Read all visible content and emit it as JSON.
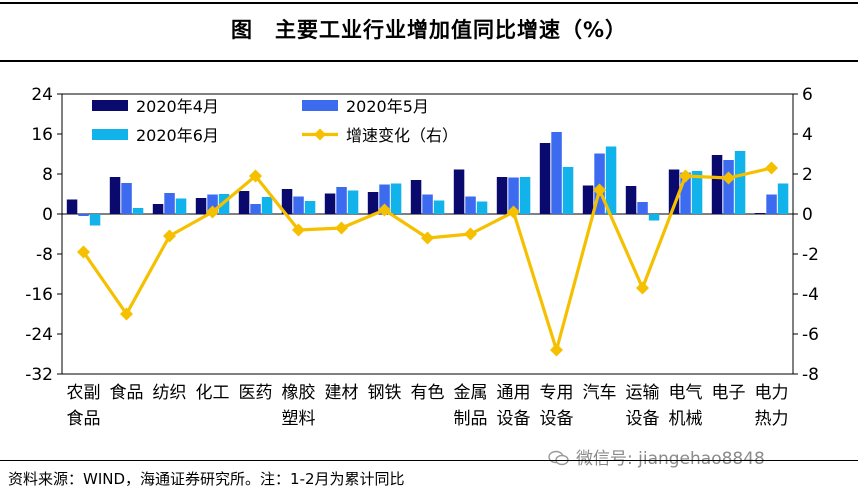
{
  "title": "图　主要工业行业增加值同比增速（%）",
  "source": "资料来源：WIND，海通证券研究所。注：1-2月为累计同比",
  "watermark": "微信号: jiangehao8848",
  "colors": {
    "apr": "#0a0a6e",
    "may": "#3d6bf0",
    "jun": "#12b2ea",
    "line": "#f5c000"
  },
  "chart_data": {
    "type": "bar",
    "categories": [
      [
        "农副",
        "食品"
      ],
      [
        "食品"
      ],
      [
        "纺织"
      ],
      [
        "化工"
      ],
      [
        "医药"
      ],
      [
        "橡胶",
        "塑料"
      ],
      [
        "建材"
      ],
      [
        "钢铁"
      ],
      [
        "有色"
      ],
      [
        "金属",
        "制品"
      ],
      [
        "通用",
        "设备"
      ],
      [
        "专用",
        "设备"
      ],
      [
        "汽车"
      ],
      [
        "运输",
        "设备"
      ],
      [
        "电气",
        "机械"
      ],
      [
        "电子"
      ],
      [
        "电力",
        "热力"
      ]
    ],
    "series": [
      {
        "name": "2020年4月",
        "axis": "left",
        "type": "bar",
        "values": [
          2.9,
          7.4,
          2.0,
          3.2,
          4.6,
          5.0,
          4.1,
          4.4,
          6.8,
          8.9,
          7.4,
          14.2,
          5.7,
          5.6,
          8.9,
          11.8,
          0.2
        ]
      },
      {
        "name": "2020年5月",
        "axis": "left",
        "type": "bar",
        "values": [
          -0.4,
          6.2,
          4.2,
          3.9,
          2.0,
          3.5,
          5.4,
          5.9,
          3.9,
          3.5,
          7.3,
          16.4,
          12.1,
          2.4,
          8.3,
          10.8,
          3.9
        ]
      },
      {
        "name": "2020年6月",
        "axis": "left",
        "type": "bar",
        "values": [
          -2.3,
          1.2,
          3.1,
          4.0,
          3.4,
          2.6,
          4.7,
          6.1,
          2.7,
          2.5,
          7.4,
          9.4,
          13.5,
          -1.3,
          8.6,
          12.6,
          6.1
        ]
      },
      {
        "name": "增速变化（右）",
        "axis": "right",
        "type": "line",
        "values": [
          -1.9,
          -5.0,
          -1.1,
          0.1,
          1.9,
          -0.8,
          -0.7,
          0.2,
          -1.2,
          -1.0,
          0.1,
          -6.8,
          1.2,
          -3.7,
          1.9,
          1.8,
          2.3
        ]
      }
    ],
    "y_left": {
      "min": -32,
      "max": 24,
      "ticks": [
        "24",
        "16",
        "8",
        "0",
        "-8",
        "-16",
        "-24",
        "-32"
      ]
    },
    "y_right": {
      "min": -8,
      "max": 6,
      "ticks": [
        "6",
        "4",
        "2",
        "0",
        "-2",
        "-4",
        "-6",
        "-8"
      ]
    },
    "grid": false,
    "legend": "top-left, inside plot, two columns"
  }
}
